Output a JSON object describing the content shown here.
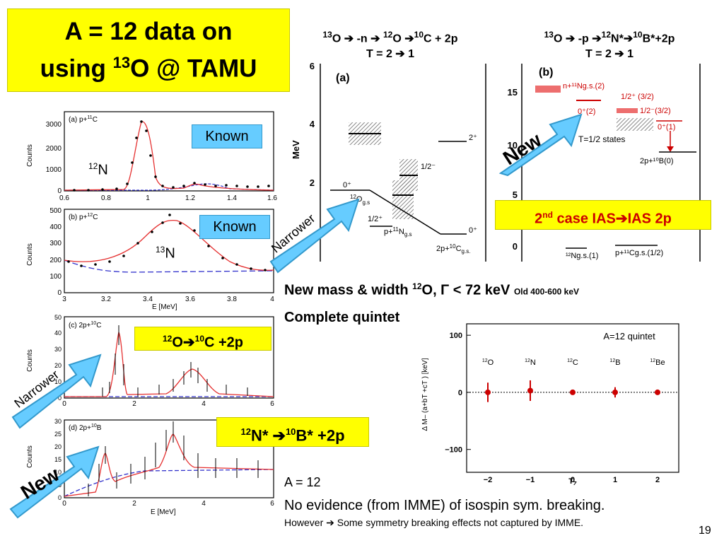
{
  "title": {
    "line1": "A = 12 data on",
    "line2_pre": "using ",
    "line2_sup": "13",
    "line2_post": "O @ TAMU"
  },
  "reaction1": {
    "sup1": "13",
    "t1": "O ➔ -n ➔ ",
    "sup2": "12",
    "t2": "O ➔",
    "sup3": "10",
    "t3": "C + 2p",
    "line2": "T = 2 ➔  1"
  },
  "reaction2": {
    "sup1": "13",
    "t1": "O ➔ -p ➔",
    "sup2": "12",
    "t2": "N*➔",
    "sup3": "10",
    "t3": "B*+2p",
    "line2": "T = 2   ➔  1"
  },
  "labels": {
    "known1": "Known",
    "known2": "Known",
    "n12_sup": "12",
    "n12": "N",
    "n13_sup": "13",
    "n13": "N",
    "o12box": {
      "sup1": "12",
      "t1": "O➔",
      "sup2": "10",
      "t2": "C +2p"
    },
    "n12box": {
      "sup1": "12",
      "t1": "N* ➔",
      "sup2": "10",
      "t2": "B* +2p"
    },
    "second_case": {
      "sup": "nd",
      "pre": "2",
      "post": " case IAS➔IAS 2p"
    },
    "new1": "New",
    "new2": "New",
    "narrower1": "Narrower",
    "narrower2": "Narrower"
  },
  "captions": {
    "mass_pre": "New mass & width ",
    "mass_sup": "12",
    "mass_post": "O, Γ < 72 keV",
    "old": "Old  400-600 keV",
    "quintet": "Complete quintet",
    "a12": "A = 12",
    "noevidence": "No evidence (from IMME) of isospin sym. breaking.",
    "however": "However ➔ Some symmetry breaking effects not captured by IMME.",
    "page": "19"
  },
  "spectra": {
    "a": {
      "label": "(a) p+",
      "label_sup": "11",
      "label_post": "C",
      "ylabel": "Counts",
      "xticks": [
        "0.6",
        "0.8",
        "1",
        "1.2",
        "1.4",
        "1.6"
      ],
      "yticks": [
        "0",
        "1000",
        "2000",
        "3000"
      ]
    },
    "b": {
      "label": "(b) p+",
      "label_sup": "12",
      "label_post": "C",
      "ylabel": "Counts",
      "xlabel": "E  [MeV]",
      "xticks": [
        "3",
        "3.2",
        "3.4",
        "3.6",
        "3.8",
        "4"
      ],
      "yticks": [
        "0",
        "100",
        "200",
        "300",
        "400",
        "500"
      ]
    },
    "c": {
      "label": "(c) 2p+",
      "label_sup": "10",
      "label_post": "C",
      "ylabel": "Counts",
      "xticks": [
        "0",
        "2",
        "4",
        "6"
      ],
      "yticks": [
        "0",
        "5",
        "10",
        "15",
        "20",
        "25",
        "30",
        "35",
        "40",
        "45",
        "50"
      ]
    },
    "d": {
      "label": "(d) 2p+",
      "label_sup": "10",
      "label_post": "B",
      "ylabel": "Counts",
      "xlabel": "E  [MeV]",
      "xlabel_sub": "T",
      "xticks": [
        "0",
        "2",
        "4",
        "6"
      ],
      "yticks": [
        "0",
        "5",
        "10",
        "15",
        "20",
        "25",
        "30"
      ]
    }
  },
  "level_a": {
    "panel": "(a)",
    "ylabel": "MeV",
    "yticks": [
      "0",
      "2",
      "4",
      "6"
    ],
    "levels": [
      "2⁺",
      "1/2⁻",
      "1/2⁺",
      "0⁺",
      "0⁺"
    ],
    "g12o": "12",
    "g12o_t": "O",
    "g12o_sub": "g.s",
    "p11n": "p+",
    "p11n_sup": "11",
    "p11n_t": "N",
    "p11n_sub": "g.s",
    "two_p10c": "2p+",
    "two_p10c_sup": "10",
    "two_p10c_t": "C",
    "two_p10c_sub": "g.s."
  },
  "level_b": {
    "panel": "(b)",
    "yticks": [
      "0",
      "5",
      "10",
      "15"
    ],
    "red_levels": [
      "n+¹¹Ng.s.(2)",
      "1/2⁺ (3/2)",
      "0⁺(2)",
      "1/2⁻(3/2)",
      "0⁺(1)"
    ],
    "t12": "T=1/2 states",
    "b10": "2p+¹⁰B(0)",
    "bottom1": "¹²Ng.s.(1)",
    "bottom2": "p+¹¹Cg.s.(1/2)"
  },
  "quintet_chart": {
    "title": "A=12  quintet",
    "ylabel": "Δ M– (a+bT  +cT ) [keV]",
    "xlabel": "T",
    "xlabel_sub": "Z",
    "xticks": [
      "−2",
      "−1",
      "0",
      "1",
      "2"
    ],
    "yticks": [
      "100",
      "0",
      "−100"
    ]
  },
  "chart_data": {
    "type": "scatter",
    "title": "A=12  quintet",
    "xlabel": "TZ",
    "ylabel": "Δ M– (a+bTZ+cTZ²) [keV]",
    "xlim": [
      -2.5,
      2.5
    ],
    "ylim": [
      -140,
      120
    ],
    "points": [
      {
        "name": "12O",
        "x": -2,
        "y": 0,
        "err": 17
      },
      {
        "name": "12N",
        "x": -1,
        "y": 3,
        "err": 18
      },
      {
        "name": "12C",
        "x": 0,
        "y": 0,
        "err": 2
      },
      {
        "name": "12B",
        "x": 1,
        "y": 0,
        "err": 9
      },
      {
        "name": "12Be",
        "x": 2,
        "y": 0,
        "err": 3
      }
    ],
    "point_labels": [
      {
        "sup": "12",
        "t": "O"
      },
      {
        "sup": "12",
        "t": "N"
      },
      {
        "sup": "12",
        "t": "C"
      },
      {
        "sup": "12",
        "t": "B"
      },
      {
        "sup": "12",
        "t": "Be"
      }
    ],
    "color": "#cc0000"
  },
  "colors": {
    "yellow": "#ffff00",
    "blue_box": "#66ccff",
    "red": "#cc0000",
    "fit_red": "#e53030",
    "bg_blue": "#3333cc"
  }
}
